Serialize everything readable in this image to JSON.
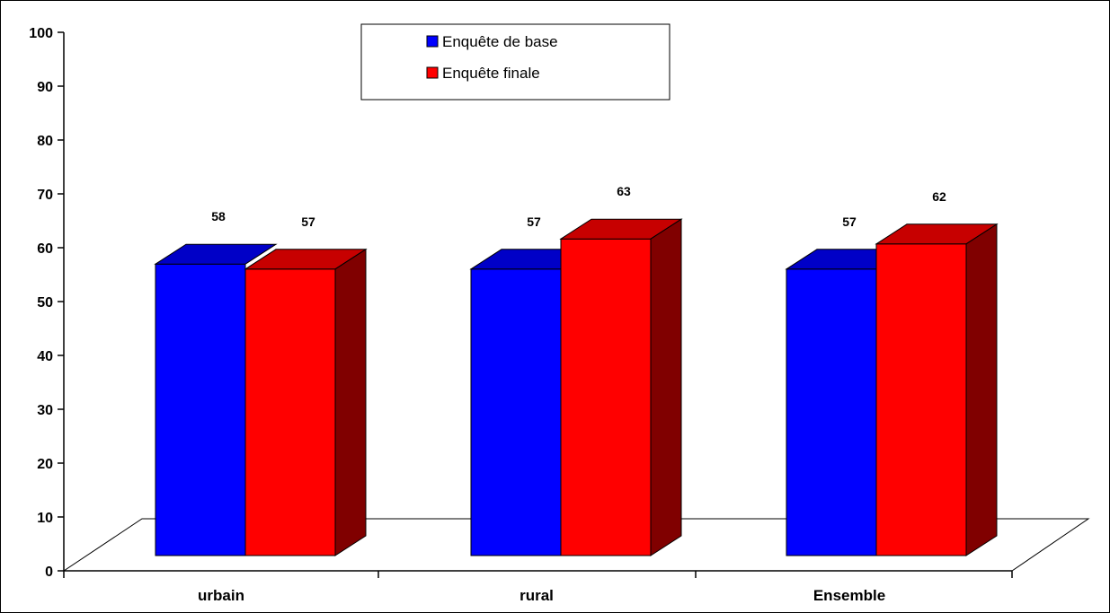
{
  "chart_data": {
    "type": "bar",
    "categories": [
      "urbain",
      "rural",
      "Ensemble"
    ],
    "series": [
      {
        "name": "Enquête de base",
        "values": [
          58,
          57,
          57
        ],
        "color": "#0000ff"
      },
      {
        "name": "Enquête finale",
        "values": [
          57,
          63,
          62
        ],
        "color": "#ff0000"
      }
    ],
    "ylim": [
      0,
      100
    ],
    "yticks": [
      "0",
      "10",
      "20",
      "30",
      "40",
      "50",
      "60",
      "70",
      "80",
      "90",
      "100"
    ],
    "data_labels": [
      [
        "58",
        "57",
        "57"
      ],
      [
        "57",
        "63",
        "62"
      ]
    ],
    "legend_position": "top-center",
    "style": "3d-column",
    "title": "",
    "xlabel": "",
    "ylabel": ""
  }
}
